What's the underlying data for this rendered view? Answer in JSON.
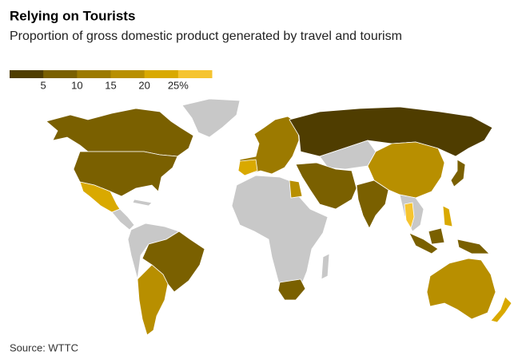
{
  "header": {
    "title": "Relying on Tourists",
    "subtitle": "Proportion of gross domestic product generated by travel and tourism"
  },
  "legend": {
    "lim": [
      0,
      30
    ],
    "colors": [
      "#4f3d00",
      "#7a6000",
      "#9c7a00",
      "#b88f00",
      "#d9a900",
      "#f5c430"
    ],
    "ticks": [
      5,
      10,
      15,
      20,
      {
        "value": 25,
        "label": "25%"
      }
    ]
  },
  "footer": {
    "source": "Source: WTTC"
  }
}
